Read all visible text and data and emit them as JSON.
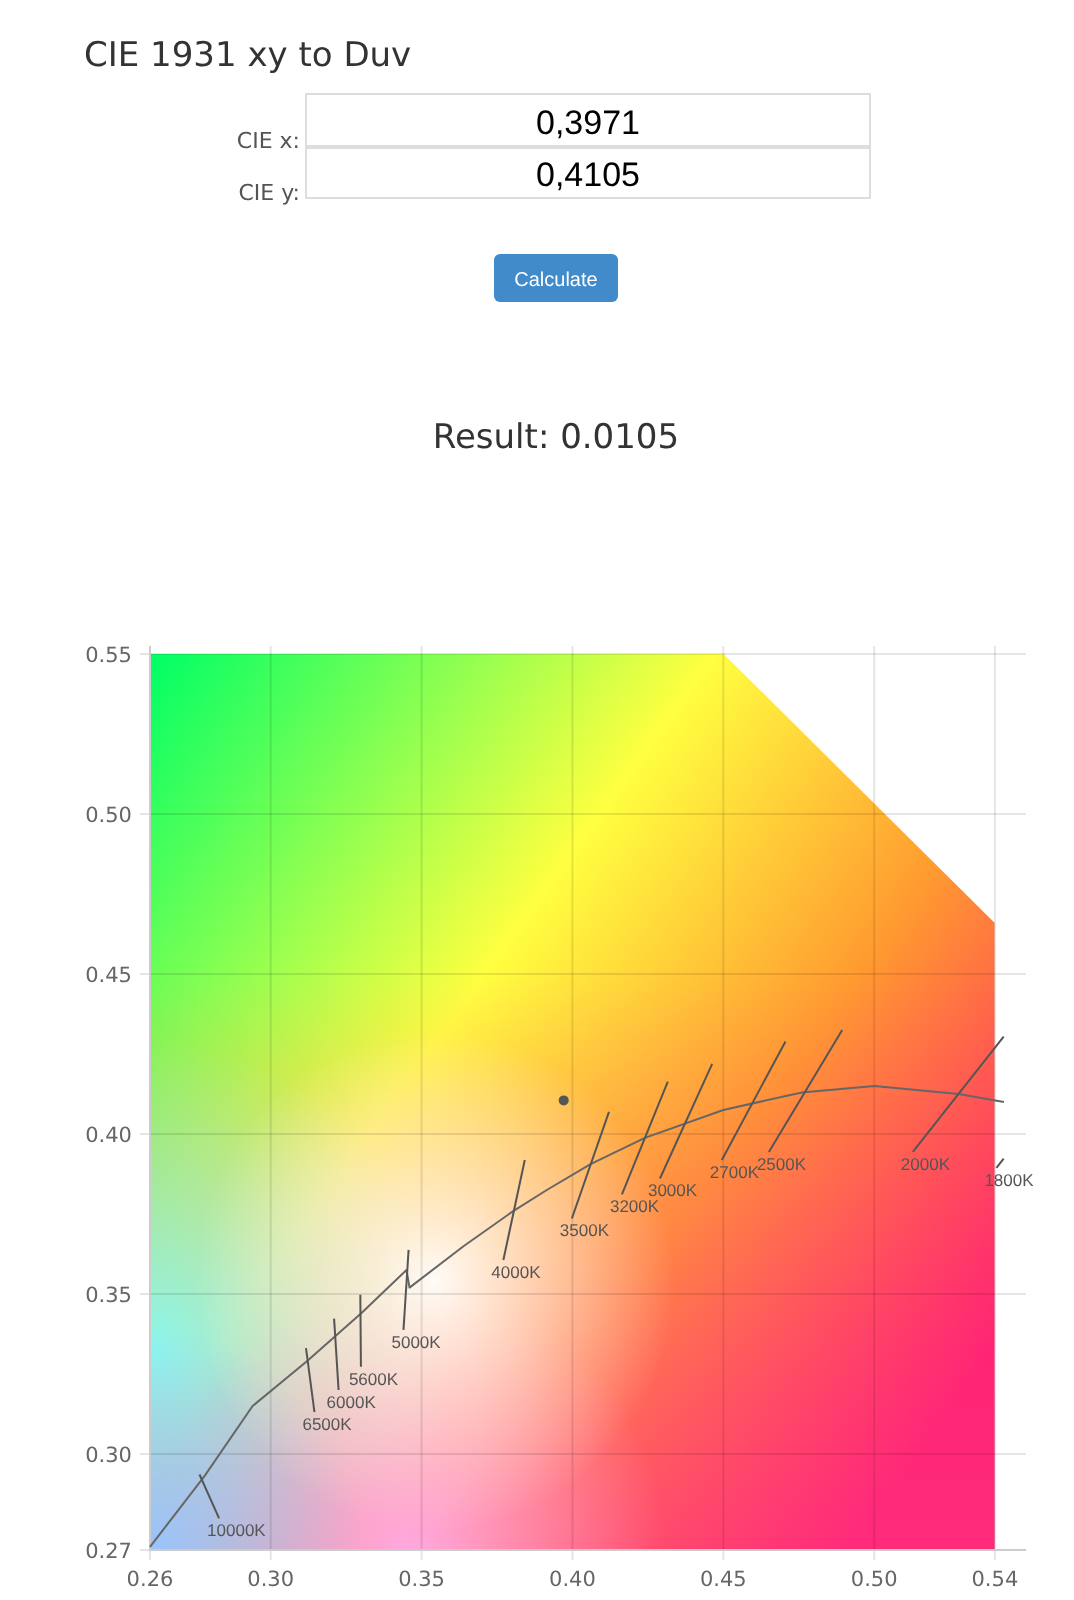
{
  "chart_data": {
    "type": "line",
    "title": "CIE 1931 xy to Duv",
    "annotations": [
      "CIE x:",
      "0,3971",
      "CIE y:",
      "0,4105",
      "Calculate",
      "Result: 0.0105"
    ],
    "xlim": [
      0.26,
      0.545
    ],
    "ylim": [
      0.27,
      0.55
    ],
    "xticks": [
      0.26,
      {
        "value": 0.3,
        "label": "0.30"
      },
      0.35,
      {
        "value": 0.4,
        "label": "0.40"
      },
      0.45,
      {
        "value": 0.5,
        "label": "0.50"
      },
      0.54
    ],
    "yticks": [
      0.27,
      {
        "value": 0.3,
        "label": "0.30"
      },
      0.35,
      {
        "value": 0.4,
        "label": "0.40"
      },
      0.45,
      {
        "value": 0.5,
        "label": "0.50"
      },
      0.55
    ],
    "grid": true,
    "legend": false,
    "series": [
      {
        "color": "#666666",
        "x": [
          0.26,
          0.278,
          0.294,
          0.312,
          0.33,
          0.345,
          0.346,
          0.364,
          0.3805,
          0.3915,
          0.406,
          0.424,
          0.45,
          0.476,
          0.5,
          0.528,
          0.543
        ],
        "values": [
          0.271,
          0.293,
          0.315,
          0.329,
          0.344,
          0.3575,
          0.352,
          0.365,
          0.376,
          0.3825,
          0.3906,
          0.3988,
          0.4075,
          0.413,
          0.415,
          0.4125,
          0.41
        ]
      },
      {
        "name": "10000K",
        "color": "#555555",
        "x": [
          0.2764,
          0.2829
        ],
        "values": [
          0.2936,
          0.2799
        ]
      },
      {
        "name": "6500K",
        "color": "#555555",
        "x": [
          0.3117,
          0.3145
        ],
        "values": [
          0.3331,
          0.3131
        ]
      },
      {
        "name": "6000K",
        "color": "#555555",
        "x": [
          0.321,
          0.3225
        ],
        "values": [
          0.3423,
          0.32
        ]
      },
      {
        "name": "5600K",
        "color": "#555555",
        "x": [
          0.3297,
          0.3299
        ],
        "values": [
          0.3498,
          0.3273
        ]
      },
      {
        "name": "5000K",
        "color": "#555555",
        "x": [
          0.3457,
          0.344
        ],
        "values": [
          0.3638,
          0.3388
        ]
      },
      {
        "name": "4000K",
        "color": "#555555",
        "x": [
          0.3842,
          0.3771
        ],
        "values": [
          0.3919,
          0.3606
        ]
      },
      {
        "name": "3500K",
        "color": "#555555",
        "x": [
          0.4121,
          0.3998
        ],
        "values": [
          0.4069,
          0.3736
        ]
      },
      {
        "name": "3200K",
        "color": "#555555",
        "x": [
          0.4316,
          0.4164
        ],
        "values": [
          0.4164,
          0.3811
        ]
      },
      {
        "name": "3000K",
        "color": "#555555",
        "x": [
          0.4463,
          0.429
        ],
        "values": [
          0.4219,
          0.3861
        ]
      },
      {
        "name": "2700K",
        "color": "#555555",
        "x": [
          0.4706,
          0.4495
        ],
        "values": [
          0.4289,
          0.3919
        ]
      },
      {
        "name": "2500K",
        "color": "#555555",
        "x": [
          0.4894,
          0.4651
        ],
        "values": [
          0.4325,
          0.3944
        ]
      },
      {
        "name": "2000K",
        "color": "#555555",
        "x": [
          0.5429,
          0.5128
        ],
        "values": [
          0.4304,
          0.3944
        ]
      },
      {
        "name": "1800K",
        "color": "#555555",
        "x": [
          0.5429,
          0.5405
        ],
        "values": [
          0.3923,
          0.3894
        ]
      },
      {
        "type": "scatter",
        "marker": "circle",
        "color": "#555555",
        "x": [
          0.3971
        ],
        "values": [
          0.4105
        ]
      }
    ]
  }
}
